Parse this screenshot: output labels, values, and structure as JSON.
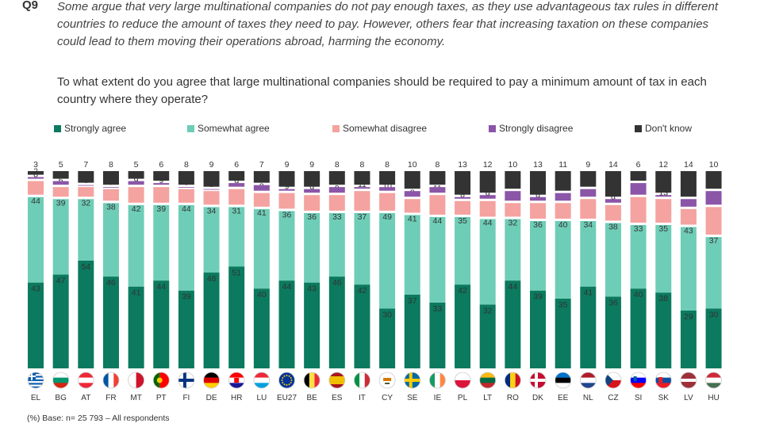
{
  "question": {
    "number": "Q9",
    "intro": "Some argue that very large multinational companies do not pay enough taxes, as they use advantageous tax rules in different countries to reduce the amount of taxes they need to pay. However, others fear that increasing taxation on these companies could lead to them moving their operations abroad, harming the economy.",
    "text": "To what extent do you agree that large multinational companies should be required to pay a minimum amount of tax in each country where they operate?"
  },
  "legend": [
    {
      "label": "Strongly agree",
      "color": "#0b7a5e"
    },
    {
      "label": "Somewhat agree",
      "color": "#6ecdb7"
    },
    {
      "label": "Somewhat disagree",
      "color": "#f4a3a0"
    },
    {
      "label": "Strongly disagree",
      "color": "#8b55a8"
    },
    {
      "label": "Don't know",
      "color": "#333333"
    }
  ],
  "chart_data": {
    "type": "bar",
    "stacked": true,
    "unit": "%",
    "categories": [
      "EL",
      "BG",
      "AT",
      "FR",
      "MT",
      "PT",
      "FI",
      "DE",
      "HR",
      "LU",
      "EU27",
      "BE",
      "ES",
      "IT",
      "CY",
      "SE",
      "IE",
      "PL",
      "LT",
      "RO",
      "DK",
      "EE",
      "NL",
      "CZ",
      "SI",
      "SK",
      "LV",
      "HU"
    ],
    "series": [
      {
        "name": "Strongly agree",
        "color": "#0b7a5e",
        "values": [
          43,
          47,
          54,
          46,
          41,
          44,
          39,
          48,
          51,
          40,
          44,
          43,
          46,
          42,
          30,
          37,
          33,
          42,
          32,
          44,
          39,
          35,
          41,
          36,
          40,
          38,
          29,
          30
        ]
      },
      {
        "name": "Somewhat agree",
        "color": "#6ecdb7",
        "values": [
          44,
          39,
          32,
          38,
          42,
          39,
          44,
          34,
          31,
          41,
          36,
          36,
          33,
          37,
          49,
          41,
          44,
          35,
          44,
          32,
          36,
          40,
          34,
          38,
          33,
          35,
          43,
          37
        ]
      },
      {
        "name": "Somewhat disagree",
        "color": "#f4a3a0",
        "values": [
          8,
          6,
          6,
          7,
          9,
          9,
          8,
          8,
          9,
          8,
          9,
          9,
          9,
          11,
          10,
          8,
          11,
          8,
          9,
          8,
          9,
          9,
          11,
          9,
          14,
          13,
          9,
          15
        ]
      },
      {
        "name": "Strongly disagree",
        "color": "#8b55a8",
        "values": [
          2,
          3,
          1,
          1,
          3,
          2,
          1,
          1,
          3,
          4,
          2,
          3,
          4,
          2,
          3,
          4,
          4,
          2,
          3,
          6,
          3,
          5,
          5,
          3,
          7,
          2,
          5,
          8
        ]
      },
      {
        "name": "Don't know",
        "color": "#333333",
        "values": [
          3,
          5,
          7,
          8,
          5,
          6,
          8,
          9,
          6,
          7,
          9,
          9,
          8,
          8,
          8,
          10,
          8,
          13,
          12,
          10,
          13,
          11,
          9,
          14,
          6,
          12,
          14,
          10
        ]
      }
    ],
    "flags": [
      "EL",
      "BG",
      "AT",
      "FR",
      "MT",
      "PT",
      "FI",
      "DE",
      "HR",
      "LU",
      "EU27",
      "BE",
      "ES",
      "IT",
      "CY",
      "SE",
      "IE",
      "PL",
      "LT",
      "RO",
      "DK",
      "EE",
      "NL",
      "CZ",
      "SI",
      "SK",
      "LV",
      "HU"
    ]
  },
  "footnote": "(%) Base: n= 25 793 – All respondents"
}
